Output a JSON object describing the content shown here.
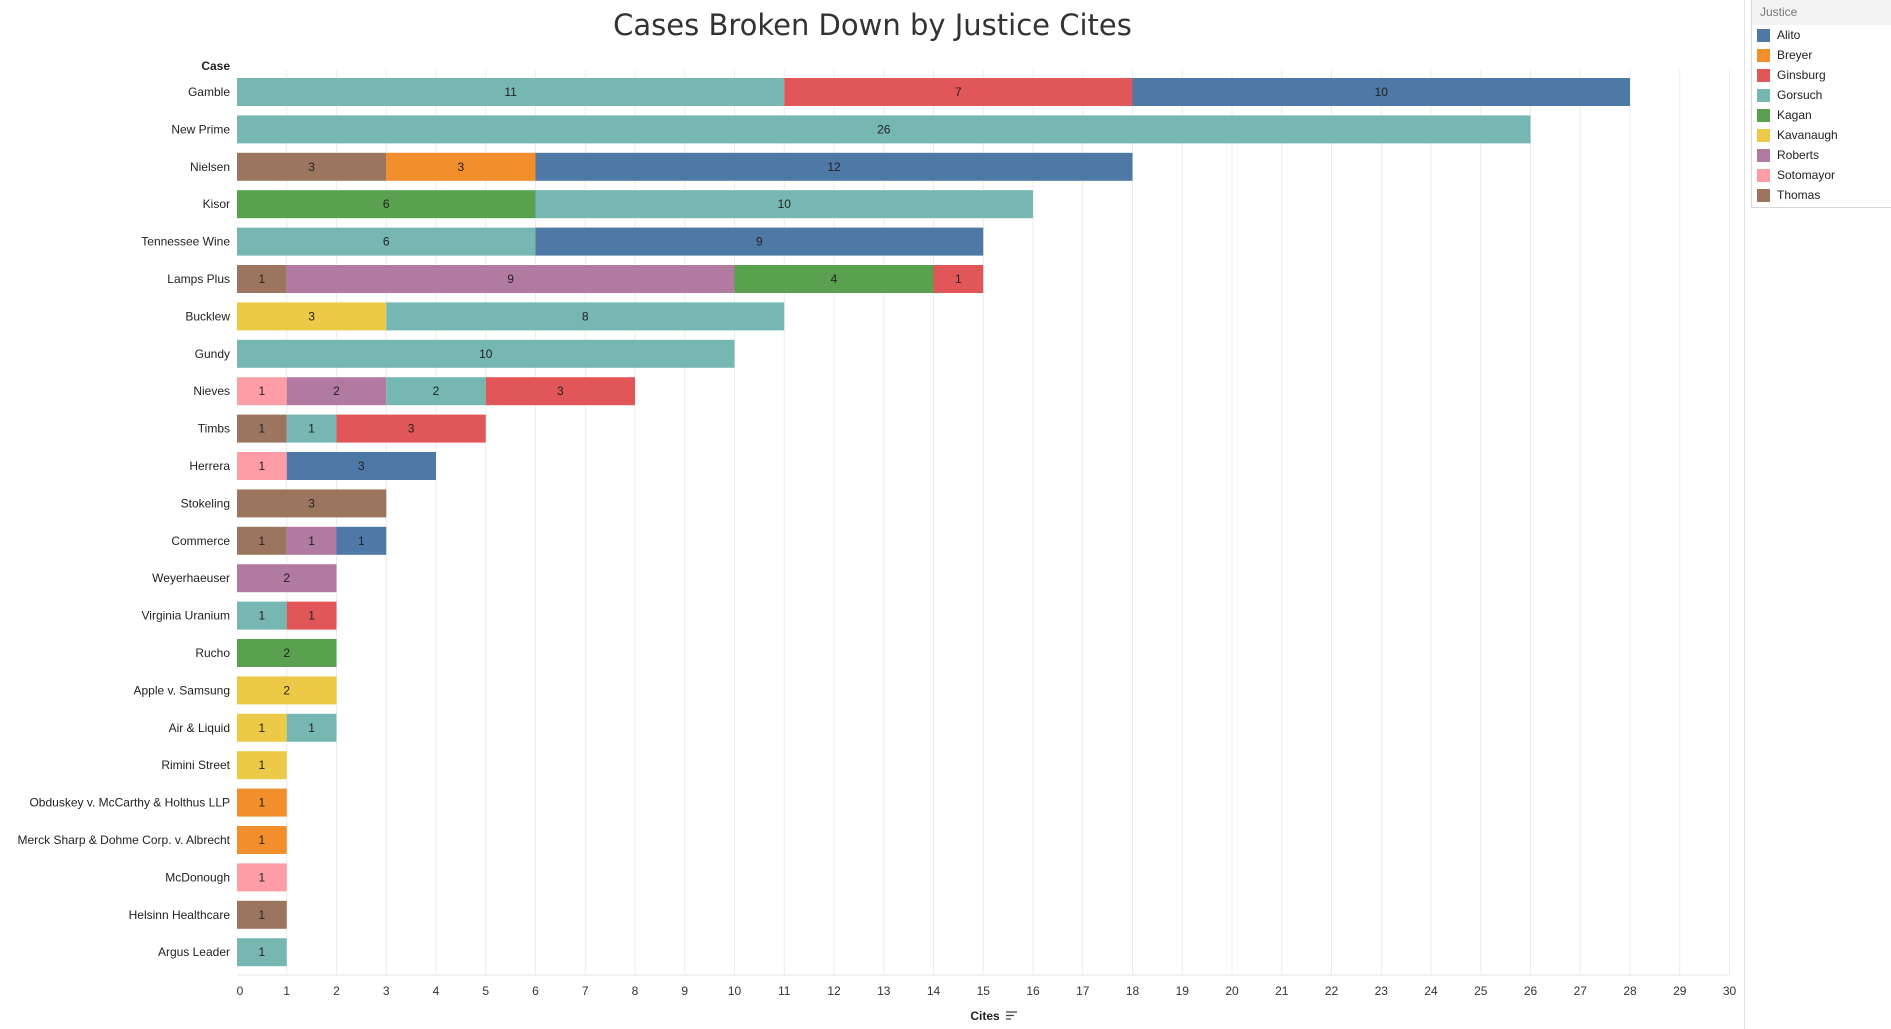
{
  "chart_data": {
    "type": "bar",
    "orientation": "horizontal",
    "stacked": true,
    "title": "Cases Broken Down by Justice Cites",
    "row_header": "Case",
    "xlabel": "Cites",
    "xlim": [
      0,
      30
    ],
    "x_ticks": [
      0,
      1,
      2,
      3,
      4,
      5,
      6,
      7,
      8,
      9,
      10,
      11,
      12,
      13,
      14,
      15,
      16,
      17,
      18,
      19,
      20,
      21,
      22,
      23,
      24,
      25,
      26,
      27,
      28,
      29,
      30
    ],
    "grid": "vertical",
    "legend_title": "Justice",
    "legend_placement": "right",
    "legend": [
      {
        "name": "Alito",
        "color": "#4e79a7"
      },
      {
        "name": "Breyer",
        "color": "#f28e2b"
      },
      {
        "name": "Ginsburg",
        "color": "#e15759"
      },
      {
        "name": "Gorsuch",
        "color": "#76b7b2"
      },
      {
        "name": "Kagan",
        "color": "#59a14f"
      },
      {
        "name": "Kavanaugh",
        "color": "#edc948"
      },
      {
        "name": "Roberts",
        "color": "#b07aa1"
      },
      {
        "name": "Sotomayor",
        "color": "#ff9da7"
      },
      {
        "name": "Thomas",
        "color": "#9c755f"
      }
    ],
    "categories": [
      {
        "case": "Gamble",
        "segments": [
          {
            "justice": "Gorsuch",
            "value": 11
          },
          {
            "justice": "Ginsburg",
            "value": 7
          },
          {
            "justice": "Alito",
            "value": 10
          }
        ]
      },
      {
        "case": "New Prime",
        "segments": [
          {
            "justice": "Gorsuch",
            "value": 26
          }
        ]
      },
      {
        "case": "Nielsen",
        "segments": [
          {
            "justice": "Thomas",
            "value": 3
          },
          {
            "justice": "Breyer",
            "value": 3
          },
          {
            "justice": "Alito",
            "value": 12
          }
        ]
      },
      {
        "case": "Kisor",
        "segments": [
          {
            "justice": "Kagan",
            "value": 6
          },
          {
            "justice": "Gorsuch",
            "value": 10
          }
        ]
      },
      {
        "case": "Tennessee Wine",
        "segments": [
          {
            "justice": "Gorsuch",
            "value": 6
          },
          {
            "justice": "Alito",
            "value": 9
          }
        ]
      },
      {
        "case": "Lamps Plus",
        "segments": [
          {
            "justice": "Thomas",
            "value": 1
          },
          {
            "justice": "Roberts",
            "value": 9
          },
          {
            "justice": "Kagan",
            "value": 4
          },
          {
            "justice": "Ginsburg",
            "value": 1
          }
        ]
      },
      {
        "case": "Bucklew",
        "segments": [
          {
            "justice": "Kavanaugh",
            "value": 3
          },
          {
            "justice": "Gorsuch",
            "value": 8
          }
        ]
      },
      {
        "case": "Gundy",
        "segments": [
          {
            "justice": "Gorsuch",
            "value": 10
          }
        ]
      },
      {
        "case": "Nieves",
        "segments": [
          {
            "justice": "Sotomayor",
            "value": 1
          },
          {
            "justice": "Roberts",
            "value": 2
          },
          {
            "justice": "Gorsuch",
            "value": 2
          },
          {
            "justice": "Ginsburg",
            "value": 3
          }
        ]
      },
      {
        "case": "Timbs",
        "segments": [
          {
            "justice": "Thomas",
            "value": 1
          },
          {
            "justice": "Gorsuch",
            "value": 1
          },
          {
            "justice": "Ginsburg",
            "value": 3
          }
        ]
      },
      {
        "case": "Herrera",
        "segments": [
          {
            "justice": "Sotomayor",
            "value": 1
          },
          {
            "justice": "Alito",
            "value": 3
          }
        ]
      },
      {
        "case": "Stokeling",
        "segments": [
          {
            "justice": "Thomas",
            "value": 3
          }
        ]
      },
      {
        "case": "Commerce",
        "segments": [
          {
            "justice": "Thomas",
            "value": 1
          },
          {
            "justice": "Roberts",
            "value": 1
          },
          {
            "justice": "Alito",
            "value": 1
          }
        ]
      },
      {
        "case": "Weyerhaeuser",
        "segments": [
          {
            "justice": "Roberts",
            "value": 2
          }
        ]
      },
      {
        "case": "Virginia Uranium",
        "segments": [
          {
            "justice": "Gorsuch",
            "value": 1
          },
          {
            "justice": "Ginsburg",
            "value": 1
          }
        ]
      },
      {
        "case": "Rucho",
        "segments": [
          {
            "justice": "Kagan",
            "value": 2
          }
        ]
      },
      {
        "case": "Apple v. Samsung",
        "segments": [
          {
            "justice": "Kavanaugh",
            "value": 2
          }
        ]
      },
      {
        "case": "Air & Liquid",
        "segments": [
          {
            "justice": "Kavanaugh",
            "value": 1
          },
          {
            "justice": "Gorsuch",
            "value": 1
          }
        ]
      },
      {
        "case": "Rimini Street",
        "segments": [
          {
            "justice": "Kavanaugh",
            "value": 1
          }
        ]
      },
      {
        "case": "Obduskey v. McCarthy & Holthus LLP",
        "segments": [
          {
            "justice": "Breyer",
            "value": 1
          }
        ]
      },
      {
        "case": "Merck Sharp & Dohme Corp. v. Albrecht",
        "segments": [
          {
            "justice": "Breyer",
            "value": 1
          }
        ]
      },
      {
        "case": "McDonough",
        "segments": [
          {
            "justice": "Sotomayor",
            "value": 1
          }
        ]
      },
      {
        "case": "Helsinn Healthcare",
        "segments": [
          {
            "justice": "Thomas",
            "value": 1
          }
        ]
      },
      {
        "case": "Argus Leader",
        "segments": [
          {
            "justice": "Gorsuch",
            "value": 1
          }
        ]
      }
    ]
  }
}
